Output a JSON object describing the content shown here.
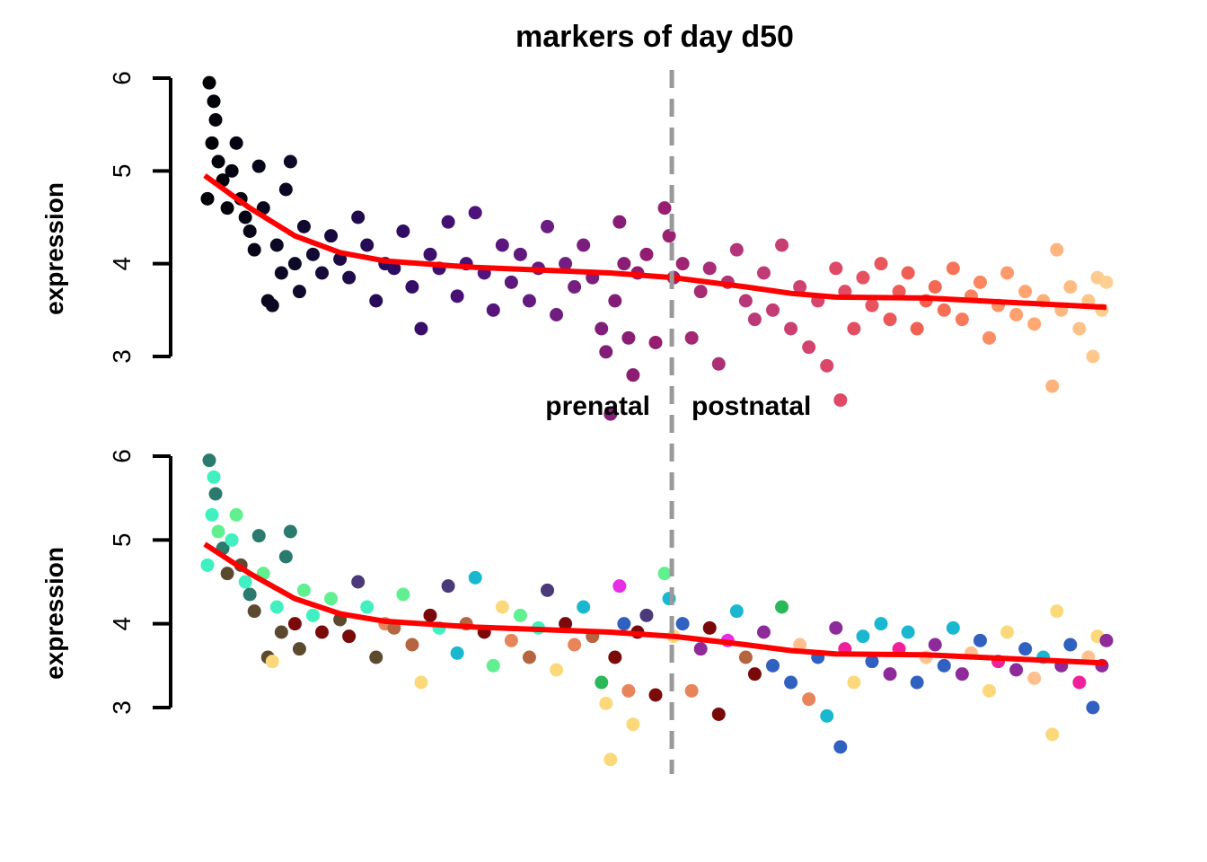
{
  "chart_data": {
    "type": "scatter",
    "title": "markers of day d50",
    "panels": [
      {
        "ylabel": "expression",
        "ylim": [
          3,
          6
        ],
        "yticks": [
          "3",
          "4",
          "5",
          "6"
        ],
        "coloring": "gradient"
      },
      {
        "ylabel": "expression",
        "ylim": [
          3,
          6
        ],
        "yticks": [
          "3",
          "4",
          "5",
          "6"
        ],
        "coloring": "categorical"
      }
    ],
    "annotations": {
      "left": "prenatal",
      "right": "postnatal",
      "divider_x": 51.8
    },
    "trend_color": "#ff0000",
    "divider_color": "#999999",
    "gradient_colors": [
      "#000004",
      "#0d0a29",
      "#2a0b5e",
      "#4f127b",
      "#721f81",
      "#951c6e",
      "#b73779",
      "#de4968",
      "#f4624f",
      "#fe9f6d",
      "#fecf92"
    ],
    "category_colors": [
      "#2a7a6e",
      "#40f0c0",
      "#60f090",
      "#5c4a2f",
      "#7a0a0a",
      "#e8845a",
      "#b5653f",
      "#fbd97a",
      "#1ab8d0",
      "#3060c0",
      "#e62ee6",
      "#8e2a9a",
      "#4a3a7a",
      "#ffc090",
      "#f0209a",
      "#2ab858"
    ],
    "trend": [
      [
        0,
        4.95
      ],
      [
        5,
        4.6
      ],
      [
        10,
        4.3
      ],
      [
        15,
        4.12
      ],
      [
        20,
        4.03
      ],
      [
        30,
        3.96
      ],
      [
        40,
        3.92
      ],
      [
        45,
        3.9
      ],
      [
        52,
        3.85
      ],
      [
        60,
        3.75
      ],
      [
        65,
        3.68
      ],
      [
        70,
        3.64
      ],
      [
        80,
        3.63
      ],
      [
        90,
        3.58
      ],
      [
        100,
        3.53
      ]
    ],
    "points": [
      [
        0.5,
        5.95,
        0
      ],
      [
        1,
        5.75,
        1
      ],
      [
        1.2,
        5.55,
        0
      ],
      [
        0.8,
        5.3,
        1
      ],
      [
        1.5,
        5.1,
        2
      ],
      [
        0.3,
        4.7,
        1
      ],
      [
        2,
        4.9,
        0
      ],
      [
        2.5,
        4.6,
        3
      ],
      [
        3,
        5.0,
        1
      ],
      [
        3.5,
        5.3,
        2
      ],
      [
        4,
        4.7,
        3
      ],
      [
        4.5,
        4.5,
        1
      ],
      [
        5,
        4.35,
        0
      ],
      [
        5.5,
        4.15,
        3
      ],
      [
        6,
        5.05,
        0
      ],
      [
        6.5,
        4.6,
        2
      ],
      [
        7,
        3.6,
        3
      ],
      [
        7.5,
        3.55,
        7
      ],
      [
        8,
        4.2,
        1
      ],
      [
        8.5,
        3.9,
        3
      ],
      [
        9,
        4.8,
        0
      ],
      [
        9.5,
        5.1,
        0
      ],
      [
        10,
        4.0,
        4
      ],
      [
        10.5,
        3.7,
        3
      ],
      [
        11,
        4.4,
        2
      ],
      [
        12,
        4.1,
        1
      ],
      [
        13,
        3.9,
        4
      ],
      [
        14,
        4.3,
        2
      ],
      [
        15,
        4.05,
        3
      ],
      [
        16,
        3.85,
        4
      ],
      [
        17,
        4.5,
        12
      ],
      [
        18,
        4.2,
        1
      ],
      [
        19,
        3.6,
        3
      ],
      [
        20,
        4.0,
        5
      ],
      [
        21,
        3.95,
        6
      ],
      [
        22,
        4.35,
        2
      ],
      [
        23,
        3.75,
        6
      ],
      [
        24,
        3.3,
        7
      ],
      [
        25,
        4.1,
        4
      ],
      [
        26,
        3.95,
        1
      ],
      [
        27,
        4.45,
        12
      ],
      [
        28,
        3.65,
        8
      ],
      [
        29,
        4.0,
        6
      ],
      [
        30,
        4.55,
        8
      ],
      [
        31,
        3.9,
        4
      ],
      [
        32,
        3.5,
        2
      ],
      [
        33,
        4.2,
        7
      ],
      [
        34,
        3.8,
        5
      ],
      [
        35,
        4.1,
        2
      ],
      [
        36,
        3.6,
        6
      ],
      [
        37,
        3.95,
        1
      ],
      [
        38,
        4.4,
        12
      ],
      [
        39,
        3.45,
        7
      ],
      [
        40,
        4.0,
        4
      ],
      [
        41,
        3.75,
        5
      ],
      [
        42,
        4.2,
        8
      ],
      [
        43,
        3.85,
        6
      ],
      [
        44,
        3.3,
        15
      ],
      [
        44.5,
        3.05,
        7
      ],
      [
        45,
        2.38,
        7
      ],
      [
        45.5,
        3.6,
        4
      ],
      [
        46,
        4.45,
        10
      ],
      [
        46.5,
        4.0,
        9
      ],
      [
        47,
        3.2,
        5
      ],
      [
        47.5,
        2.8,
        7
      ],
      [
        48,
        3.9,
        4
      ],
      [
        49,
        4.1,
        12
      ],
      [
        50,
        3.15,
        4
      ],
      [
        51,
        4.6,
        2
      ],
      [
        51.5,
        4.3,
        8
      ],
      [
        52,
        3.85,
        7
      ],
      [
        53,
        4.0,
        9
      ],
      [
        54,
        3.2,
        5
      ],
      [
        55,
        3.7,
        11
      ],
      [
        56,
        3.95,
        4
      ],
      [
        57,
        2.92,
        4
      ],
      [
        58,
        3.8,
        10
      ],
      [
        59,
        4.15,
        8
      ],
      [
        60,
        3.6,
        6
      ],
      [
        61,
        3.4,
        4
      ],
      [
        62,
        3.9,
        11
      ],
      [
        63,
        3.5,
        9
      ],
      [
        64,
        4.2,
        15
      ],
      [
        65,
        3.3,
        9
      ],
      [
        66,
        3.75,
        13
      ],
      [
        67,
        3.1,
        5
      ],
      [
        68,
        3.6,
        9
      ],
      [
        69,
        2.9,
        8
      ],
      [
        70,
        3.95,
        11
      ],
      [
        70.5,
        2.53,
        9
      ],
      [
        71,
        3.7,
        14
      ],
      [
        72,
        3.3,
        7
      ],
      [
        73,
        3.85,
        8
      ],
      [
        74,
        3.55,
        9
      ],
      [
        75,
        4.0,
        8
      ],
      [
        76,
        3.4,
        11
      ],
      [
        77,
        3.7,
        14
      ],
      [
        78,
        3.9,
        8
      ],
      [
        79,
        3.3,
        9
      ],
      [
        80,
        3.6,
        13
      ],
      [
        81,
        3.75,
        11
      ],
      [
        82,
        3.5,
        9
      ],
      [
        83,
        3.95,
        8
      ],
      [
        84,
        3.4,
        11
      ],
      [
        85,
        3.65,
        13
      ],
      [
        86,
        3.8,
        9
      ],
      [
        87,
        3.2,
        7
      ],
      [
        88,
        3.55,
        14
      ],
      [
        89,
        3.9,
        7
      ],
      [
        90,
        3.45,
        11
      ],
      [
        91,
        3.7,
        9
      ],
      [
        92,
        3.35,
        13
      ],
      [
        93,
        3.6,
        8
      ],
      [
        94,
        2.68,
        7
      ],
      [
        94.5,
        4.15,
        7
      ],
      [
        95,
        3.5,
        11
      ],
      [
        96,
        3.75,
        9
      ],
      [
        97,
        3.3,
        14
      ],
      [
        98,
        3.6,
        13
      ],
      [
        98.5,
        3.0,
        9
      ],
      [
        99,
        3.85,
        7
      ],
      [
        99.5,
        3.5,
        11
      ],
      [
        100,
        3.8,
        11
      ]
    ]
  }
}
